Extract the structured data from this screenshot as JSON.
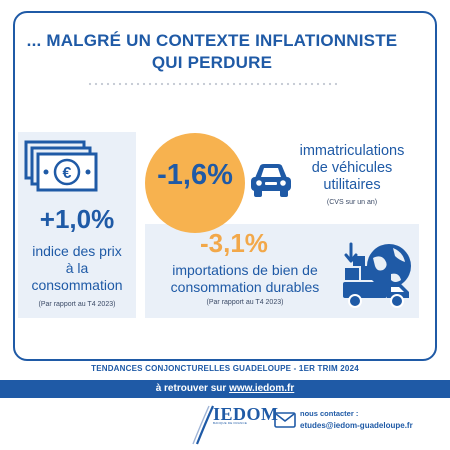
{
  "headline": {
    "line1": "... MALGRÉ UN CONTEXTE INFLATIONNISTE",
    "line2": "QUI PERDURE"
  },
  "cpi": {
    "value": "+1,0%",
    "label_lines": [
      "indice des prix",
      "à la",
      "consommation"
    ],
    "note": "(Par rapport au T4 2023)",
    "icon": "banknote-euro-icon"
  },
  "vehicles": {
    "value": "-1,6%",
    "label_lines": [
      "immatriculations",
      "de véhicules",
      "utilitaires"
    ],
    "note": "(CVS sur un an)",
    "icon": "car-icon",
    "accent_color": "#f7b24f"
  },
  "imports": {
    "value": "-3,1%",
    "label_lines": [
      "importations de bien de",
      "consommation durables"
    ],
    "note": "(Par rapport au T4 2023)",
    "icon": "delivery-truck-globe-icon",
    "value_color": "#f2a84a"
  },
  "footer": {
    "title": "TENDANCES CONJONCTURELLES GUADELOUPE - 1ER TRIM 2024",
    "band_prefix": "à retrouver sur ",
    "band_url": "www.iedom.fr",
    "logo_text": "IEDOM",
    "logo_sub": "BANQUE DE FRANCE",
    "contact_label": "nous contacter :",
    "contact_email": "etudes@iedom-guadeloupe.fr",
    "mail_icon": "mail-icon"
  },
  "colors": {
    "brand_blue": "#1f5aa6",
    "panel_bg": "#eaf0f8"
  }
}
